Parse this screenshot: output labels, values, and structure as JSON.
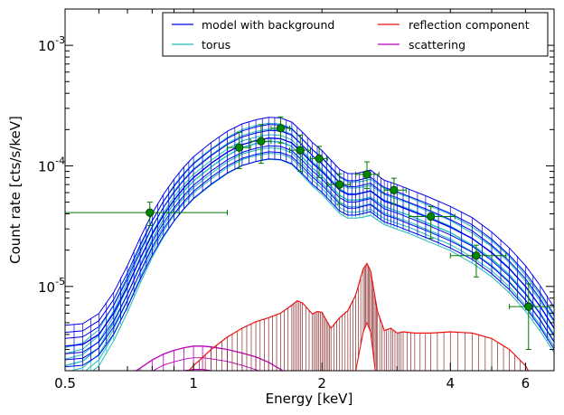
{
  "chart_data": {
    "type": "line",
    "xlabel": "Energy [keV]",
    "ylabel": "Count rate [cts/s/keV]",
    "xscale": "log",
    "yscale": "log",
    "xlim": [
      0.5,
      7.0
    ],
    "ylim": [
      2e-06,
      0.002
    ],
    "x_ticks": [
      {
        "v": 0.5,
        "label": "0.5"
      },
      {
        "v": 1,
        "label": "1"
      },
      {
        "v": 2,
        "label": "2"
      },
      {
        "v": 4,
        "label": "4"
      },
      {
        "v": 6,
        "label": "6"
      }
    ],
    "y_ticks": [
      {
        "v": 1e-05,
        "label": "10",
        "exp": "-5"
      },
      {
        "v": 0.0001,
        "label": "10",
        "exp": "-4"
      },
      {
        "v": 0.001,
        "label": "10",
        "exp": "-3"
      }
    ],
    "legend": {
      "position": "top-right",
      "columns": 2,
      "entries": [
        {
          "name": "model with background",
          "color": "#0000ee"
        },
        {
          "name": "reflection component",
          "color": "#ee1111"
        },
        {
          "name": "torus",
          "color": "#22bbbb"
        },
        {
          "name": "scattering",
          "color": "#bb00bb"
        }
      ]
    },
    "colors": {
      "model": "#0000ee",
      "torus": "#22bbbb",
      "reflection": "#ee1111",
      "reflection_hatch": "#8b2a2a",
      "scattering": "#bb00bb",
      "data": "#007a00",
      "data_marker": "#008800"
    },
    "series": [
      {
        "name": "model with background",
        "x": [
          0.5,
          0.55,
          0.6,
          0.65,
          0.7,
          0.75,
          0.8,
          0.85,
          0.9,
          0.95,
          1.0,
          1.1,
          1.2,
          1.3,
          1.4,
          1.5,
          1.6,
          1.7,
          1.8,
          1.9,
          2.0,
          2.1,
          2.2,
          2.3,
          2.4,
          2.5,
          2.6,
          2.7,
          2.8,
          2.9,
          3.0,
          3.2,
          3.5,
          4.0,
          4.5,
          5.0,
          5.5,
          6.0,
          6.5,
          7.0
        ],
        "y": [
          3.2e-06,
          3.3e-06,
          4e-06,
          6e-06,
          1e-05,
          1.7e-05,
          2.7e-05,
          3.9e-05,
          5.2e-05,
          6.6e-05,
          8e-05,
          0.000105,
          0.00013,
          0.00015,
          0.000162,
          0.00017,
          0.000168,
          0.000155,
          0.000128,
          0.000105,
          9e-05,
          7.5e-05,
          6.3e-05,
          5.8e-05,
          5.8e-05,
          6e-05,
          6.2e-05,
          5.6e-05,
          5.1e-05,
          4.9e-05,
          4.7e-05,
          4.3e-05,
          3.8e-05,
          3.1e-05,
          2.5e-05,
          1.9e-05,
          1.4e-05,
          1e-05,
          6.8e-06,
          4.5e-06
        ],
        "band": [
          0.14,
          0.25,
          0.38
        ]
      },
      {
        "name": "torus",
        "x": [
          0.5,
          0.55,
          0.6,
          0.65,
          0.7,
          0.75,
          0.8,
          0.85,
          0.9,
          0.95,
          1.0,
          1.1,
          1.2,
          1.3,
          1.4,
          1.5,
          1.6,
          1.7,
          1.8,
          1.9,
          2.0,
          2.1,
          2.2,
          2.3,
          2.4,
          2.5,
          2.6,
          2.7,
          2.8,
          2.9,
          3.0,
          3.2,
          3.5,
          4.0,
          4.5,
          5.0,
          5.5,
          6.0,
          6.5,
          7.0
        ],
        "y": [
          2.2e-06,
          2.4e-06,
          3.1e-06,
          5e-06,
          8.6e-06,
          1.5e-05,
          2.45e-05,
          3.6e-05,
          4.9e-05,
          6.2e-05,
          7.5e-05,
          9.8e-05,
          0.000122,
          0.000142,
          0.000153,
          0.00016,
          0.000158,
          0.000145,
          0.000118,
          9.6e-05,
          8.2e-05,
          6.8e-05,
          5.7e-05,
          5.2e-05,
          5.2e-05,
          5.3e-05,
          5.5e-05,
          5e-05,
          4.6e-05,
          4.4e-05,
          4.2e-05,
          3.9e-05,
          3.4e-05,
          2.8e-05,
          2.2e-05,
          1.7e-05,
          1.25e-05,
          8.8e-06,
          6e-06,
          4e-06
        ],
        "band": [
          0.12,
          0.22,
          0.33
        ]
      },
      {
        "name": "reflection component",
        "x": [
          0.9,
          1.0,
          1.1,
          1.2,
          1.3,
          1.4,
          1.5,
          1.6,
          1.7,
          1.75,
          1.8,
          1.9,
          1.95,
          2.0,
          2.05,
          2.1,
          2.2,
          2.3,
          2.4,
          2.5,
          2.55,
          2.6,
          2.65,
          2.7,
          2.8,
          2.9,
          3.0,
          3.1,
          3.3,
          3.6,
          4.0,
          4.5,
          5.0,
          5.5,
          6.0,
          6.3
        ],
        "y": [
          1.5e-06,
          2.2e-06,
          3e-06,
          3.8e-06,
          4.5e-06,
          5.1e-06,
          5.5e-06,
          6e-06,
          7e-06,
          7.6e-06,
          7.3e-06,
          5.9e-06,
          6.2e-06,
          6.1e-06,
          5.2e-06,
          4.5e-06,
          5.5e-06,
          6.3e-06,
          8.5e-06,
          1.4e-05,
          1.55e-05,
          1.35e-05,
          9e-06,
          6.2e-06,
          4.3e-06,
          4.5e-06,
          4.1e-06,
          4.2e-06,
          4.1e-06,
          4.1e-06,
          4.2e-06,
          4.1e-06,
          3.7e-06,
          3e-06,
          2.2e-06,
          1.6e-06
        ],
        "lower": [
          1e-06,
          1e-06,
          1e-06,
          1e-06,
          1e-06,
          1e-06,
          1e-06,
          1e-06,
          1.2e-06,
          1.6e-06,
          1.4e-06,
          1e-06,
          1e-06,
          1e-06,
          1e-06,
          1e-06,
          1e-06,
          1.2e-06,
          2e-06,
          4.2e-06,
          5e-06,
          4.2e-06,
          2.4e-06,
          1.4e-06,
          1e-06,
          1e-06,
          1e-06,
          1e-06,
          1e-06,
          1e-06,
          1e-06,
          1e-06,
          1e-06,
          1e-06,
          1e-06,
          1e-06
        ]
      },
      {
        "name": "scattering",
        "x": [
          0.7,
          0.75,
          0.8,
          0.85,
          0.9,
          0.95,
          1.0,
          1.05,
          1.1,
          1.2,
          1.3,
          1.4,
          1.5,
          1.6,
          1.7
        ],
        "y": [
          1.8e-06,
          2.1e-06,
          2.45e-06,
          2.75e-06,
          2.95e-06,
          3.1e-06,
          3.2e-06,
          3.2e-06,
          3.15e-06,
          3e-06,
          2.8e-06,
          2.6e-06,
          2.35e-06,
          2.05e-06,
          1.8e-06
        ],
        "lower": [
          1.2e-06,
          1.4e-06,
          1.6e-06,
          1.8e-06,
          1.9e-06,
          2e-06,
          2.05e-06,
          2.05e-06,
          2e-06,
          1.9e-06,
          1.75e-06,
          1.6e-06,
          1.45e-06,
          1.3e-06,
          1.2e-06
        ]
      },
      {
        "name": "data",
        "points": [
          {
            "x": 0.79,
            "y": 4.1e-05,
            "xlo": 0.5,
            "xhi": 1.2,
            "ylo": 3.2e-05,
            "yhi": 5e-05
          },
          {
            "x": 1.28,
            "y": 0.000142,
            "xlo": 1.2,
            "xhi": 1.36,
            "ylo": 9.5e-05,
            "yhi": 0.00019
          },
          {
            "x": 1.44,
            "y": 0.00016,
            "xlo": 1.36,
            "xhi": 1.52,
            "ylo": 0.000105,
            "yhi": 0.00022
          },
          {
            "x": 1.6,
            "y": 0.000205,
            "xlo": 1.52,
            "xhi": 1.68,
            "ylo": 0.000155,
            "yhi": 0.000255
          },
          {
            "x": 1.78,
            "y": 0.000135,
            "xlo": 1.68,
            "xhi": 1.88,
            "ylo": 9e-05,
            "yhi": 0.00018
          },
          {
            "x": 1.97,
            "y": 0.000115,
            "xlo": 1.88,
            "xhi": 2.06,
            "ylo": 8e-05,
            "yhi": 0.000145
          },
          {
            "x": 2.2,
            "y": 7e-05,
            "xlo": 2.06,
            "xhi": 2.33,
            "ylo": 4.8e-05,
            "yhi": 8.6e-05
          },
          {
            "x": 2.55,
            "y": 8.5e-05,
            "xlo": 2.4,
            "xhi": 2.72,
            "ylo": 6.5e-05,
            "yhi": 0.000108
          },
          {
            "x": 2.95,
            "y": 6.3e-05,
            "xlo": 2.8,
            "xhi": 3.15,
            "ylo": 4.8e-05,
            "yhi": 7.9e-05
          },
          {
            "x": 3.6,
            "y": 3.8e-05,
            "xlo": 3.2,
            "xhi": 4.1,
            "ylo": 2.5e-05,
            "yhi": 4.6e-05
          },
          {
            "x": 4.6,
            "y": 1.8e-05,
            "xlo": 4.0,
            "xhi": 5.4,
            "ylo": 1.2e-05,
            "yhi": 2.2e-05
          },
          {
            "x": 6.1,
            "y": 6.8e-06,
            "xlo": 5.5,
            "xhi": 7.0,
            "ylo": 3e-06,
            "yhi": 1.05e-05
          }
        ]
      }
    ]
  }
}
